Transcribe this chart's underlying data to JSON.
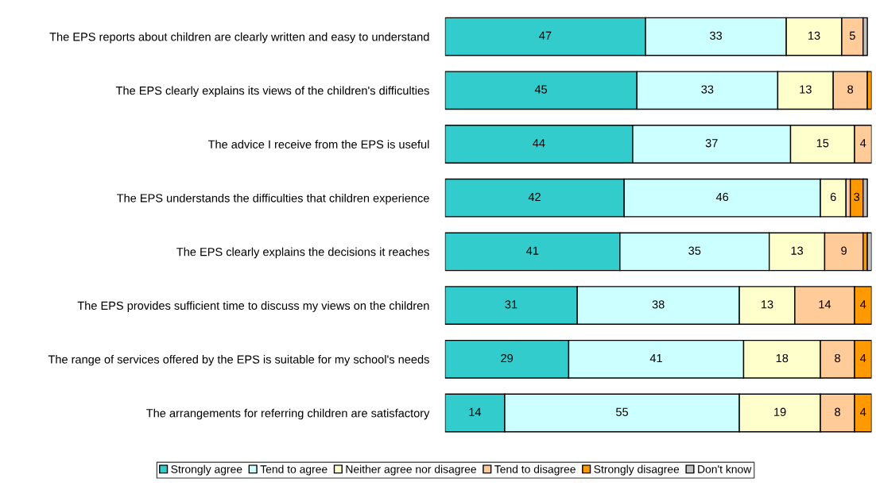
{
  "chart_data": {
    "type": "bar",
    "orientation": "horizontal",
    "stacked": true,
    "tick_labels": "y",
    "legend": "bottom",
    "categories": [
      "The EPS reports about children are clearly written and easy to understand",
      "The EPS clearly explains its views of the children's difficulties",
      "The advice I receive from the EPS is useful",
      "The EPS understands the difficulties that children experience",
      "The EPS clearly explains the decisions it reaches",
      "The EPS provides sufficient time to discuss my views on the children",
      "The range of services offered by the EPS is suitable for my school's needs",
      "The arrangements for referring children are satisfactory"
    ],
    "series": [
      {
        "name": "Strongly agree",
        "color": "#33cccc",
        "values": [
          47,
          45,
          44,
          42,
          41,
          31,
          29,
          14
        ],
        "value_labels": [
          "47",
          "45",
          "44",
          "42",
          "41",
          "31",
          "29",
          "14"
        ]
      },
      {
        "name": "Tend to agree",
        "color": "#ccffff",
        "values": [
          33,
          33,
          37,
          46,
          35,
          38,
          41,
          55
        ],
        "value_labels": [
          "33",
          "33",
          "37",
          "46",
          "35",
          "38",
          "41",
          "55"
        ]
      },
      {
        "name": "Neither agree nor disagree",
        "color": "#ffffcc",
        "values": [
          13,
          13,
          15,
          6,
          13,
          13,
          18,
          19
        ],
        "value_labels": [
          "13",
          "13",
          "15",
          "6",
          "13",
          "13",
          "18",
          "19"
        ]
      },
      {
        "name": "Tend to disagree",
        "color": "#ffcc99",
        "values": [
          5,
          8,
          4,
          1,
          9,
          14,
          8,
          8
        ],
        "value_labels": [
          "5",
          "8",
          "4",
          null,
          "9",
          "14",
          "8",
          "8"
        ]
      },
      {
        "name": "Strongly disagree",
        "color": "#ff9900",
        "values": [
          null,
          1,
          null,
          3,
          1,
          4,
          4,
          4
        ],
        "value_labels": [
          null,
          null,
          null,
          "3",
          null,
          "4",
          "4",
          "4"
        ]
      },
      {
        "name": "Don't know",
        "color": "#c0c0c0",
        "values": [
          1,
          null,
          null,
          1,
          1,
          null,
          null,
          null
        ],
        "value_labels": [
          null,
          null,
          null,
          null,
          null,
          null,
          null,
          null
        ]
      }
    ]
  }
}
